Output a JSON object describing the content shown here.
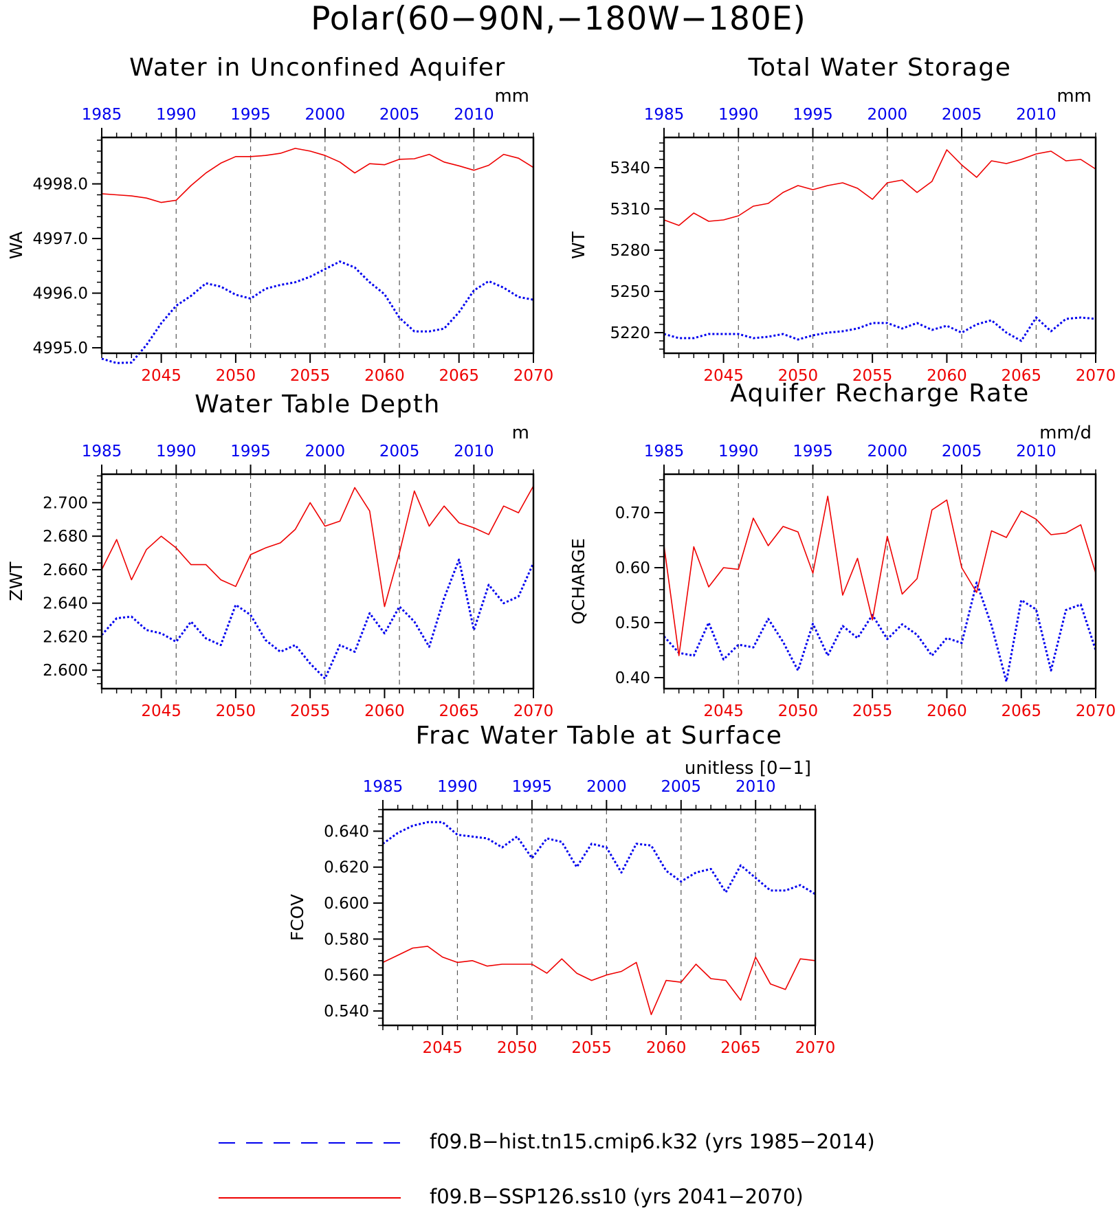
{
  "figure": {
    "title": "Polar(60−90N,−180W−180E)",
    "colors": {
      "hist": "#0000ee",
      "ssp": "#ee0000",
      "axis": "#000000"
    }
  },
  "legend": {
    "items": [
      {
        "key": "hist",
        "label": "f09.B−hist.tn15.cmip6.k32 (yrs 1985−2014)",
        "style": "dotted",
        "color": "#0000ee"
      },
      {
        "key": "ssp",
        "label": "f09.B−SSP126.ss10 (yrs 2041−2070)",
        "style": "solid",
        "color": "#ee0000"
      }
    ]
  },
  "chart_data": [
    {
      "type": "line",
      "title": "Water in Unconfined Aquifer",
      "ylabel": "WA",
      "units": "mm",
      "ylim": [
        4994.9,
        4998.85
      ],
      "yticks": [
        4995.0,
        4996.0,
        4997.0,
        4998.0
      ],
      "ytick_labels": [
        "4995.0",
        "4996.0",
        "4997.0",
        "4998.0"
      ],
      "top_axis": {
        "range": [
          1985,
          2014
        ],
        "ticks": [
          1985,
          1990,
          1995,
          2000,
          2005,
          2010
        ],
        "tick_labels": [
          "1985",
          "1990",
          "1995",
          "2000",
          "2005",
          "2010"
        ]
      },
      "bottom_axis": {
        "range": [
          2041,
          2070
        ],
        "ticks": [
          2045,
          2050,
          2055,
          2060,
          2065,
          2070
        ],
        "tick_labels": [
          "2045",
          "2050",
          "2055",
          "2060",
          "2065",
          "2070"
        ]
      },
      "series": [
        {
          "key": "hist",
          "x_axis": "top",
          "x": [
            1985,
            1986,
            1987,
            1988,
            1989,
            1990,
            1991,
            1992,
            1993,
            1994,
            1995,
            1996,
            1997,
            1998,
            1999,
            2000,
            2001,
            2002,
            2003,
            2004,
            2005,
            2006,
            2007,
            2008,
            2009,
            2010,
            2011,
            2012,
            2013,
            2014
          ],
          "values": [
            4994.8,
            4994.72,
            4994.73,
            4995.05,
            4995.45,
            4995.77,
            4995.95,
            4996.18,
            4996.12,
            4995.97,
            4995.9,
            4996.08,
            4996.15,
            4996.2,
            4996.3,
            4996.44,
            4996.58,
            4996.47,
            4996.2,
            4995.98,
            4995.55,
            4995.3,
            4995.3,
            4995.35,
            4995.65,
            4996.05,
            4996.22,
            4996.1,
            4995.93,
            4995.88
          ]
        },
        {
          "key": "ssp",
          "x_axis": "bottom",
          "x": [
            2041,
            2042,
            2043,
            2044,
            2045,
            2046,
            2047,
            2048,
            2049,
            2050,
            2051,
            2052,
            2053,
            2054,
            2055,
            2056,
            2057,
            2058,
            2059,
            2060,
            2061,
            2062,
            2063,
            2064,
            2065,
            2066,
            2067,
            2068,
            2069,
            2070
          ],
          "values": [
            4997.82,
            4997.8,
            4997.78,
            4997.74,
            4997.66,
            4997.7,
            4997.97,
            4998.2,
            4998.38,
            4998.5,
            4998.5,
            4998.52,
            4998.56,
            4998.65,
            4998.6,
            4998.52,
            4998.4,
            4998.2,
            4998.37,
            4998.35,
            4998.45,
            4998.46,
            4998.54,
            4998.4,
            4998.33,
            4998.25,
            4998.34,
            4998.54,
            4998.47,
            4998.3
          ]
        }
      ]
    },
    {
      "type": "line",
      "title": "Total Water Storage",
      "ylabel": "WT",
      "units": "mm",
      "ylim": [
        5205,
        5362
      ],
      "yticks": [
        5220,
        5250,
        5280,
        5310,
        5340
      ],
      "ytick_labels": [
        "5220",
        "5250",
        "5280",
        "5310",
        "5340"
      ],
      "top_axis": {
        "range": [
          1985,
          2014
        ],
        "ticks": [
          1985,
          1990,
          1995,
          2000,
          2005,
          2010
        ],
        "tick_labels": [
          "1985",
          "1990",
          "1995",
          "2000",
          "2005",
          "2010"
        ]
      },
      "bottom_axis": {
        "range": [
          2041,
          2070
        ],
        "ticks": [
          2045,
          2050,
          2055,
          2060,
          2065,
          2070
        ],
        "tick_labels": [
          "2045",
          "2050",
          "2055",
          "2060",
          "2065",
          "2070"
        ]
      },
      "series": [
        {
          "key": "hist",
          "x_axis": "top",
          "x": [
            1985,
            1986,
            1987,
            1988,
            1989,
            1990,
            1991,
            1992,
            1993,
            1994,
            1995,
            1996,
            1997,
            1998,
            1999,
            2000,
            2001,
            2002,
            2003,
            2004,
            2005,
            2006,
            2007,
            2008,
            2009,
            2010,
            2011,
            2012,
            2013,
            2014
          ],
          "values": [
            5219,
            5216,
            5216,
            5219,
            5219,
            5219,
            5216,
            5217,
            5219,
            5215,
            5218,
            5220,
            5221,
            5223,
            5227,
            5227,
            5223,
            5227,
            5222,
            5225,
            5220,
            5226,
            5229,
            5220,
            5214,
            5231,
            5221,
            5230,
            5231,
            5230
          ]
        },
        {
          "key": "ssp",
          "x_axis": "bottom",
          "x": [
            2041,
            2042,
            2043,
            2044,
            2045,
            2046,
            2047,
            2048,
            2049,
            2050,
            2051,
            2052,
            2053,
            2054,
            2055,
            2056,
            2057,
            2058,
            2059,
            2060,
            2061,
            2062,
            2063,
            2064,
            2065,
            2066,
            2067,
            2068,
            2069,
            2070
          ],
          "values": [
            5302,
            5298,
            5307,
            5301,
            5302,
            5305,
            5312,
            5314,
            5322,
            5327,
            5324,
            5327,
            5329,
            5325,
            5317,
            5329,
            5331,
            5322,
            5330,
            5353,
            5342,
            5333,
            5345,
            5343,
            5346,
            5350,
            5352,
            5345,
            5346,
            5339
          ]
        }
      ]
    },
    {
      "type": "line",
      "title": "Water Table Depth",
      "ylabel": "ZWT",
      "units": "m",
      "ylim": [
        2.589,
        2.717
      ],
      "yticks": [
        2.6,
        2.62,
        2.64,
        2.66,
        2.68,
        2.7
      ],
      "ytick_labels": [
        "2.600",
        "2.620",
        "2.640",
        "2.660",
        "2.680",
        "2.700"
      ],
      "top_axis": {
        "range": [
          1985,
          2014
        ],
        "ticks": [
          1985,
          1990,
          1995,
          2000,
          2005,
          2010
        ],
        "tick_labels": [
          "1985",
          "1990",
          "1995",
          "2000",
          "2005",
          "2010"
        ]
      },
      "bottom_axis": {
        "range": [
          2041,
          2070
        ],
        "ticks": [
          2045,
          2050,
          2055,
          2060,
          2065,
          2070
        ],
        "tick_labels": [
          "2045",
          "2050",
          "2055",
          "2060",
          "2065",
          "2070"
        ]
      },
      "series": [
        {
          "key": "hist",
          "x_axis": "top",
          "x": [
            1985,
            1986,
            1987,
            1988,
            1989,
            1990,
            1991,
            1992,
            1993,
            1994,
            1995,
            1996,
            1997,
            1998,
            1999,
            2000,
            2001,
            2002,
            2003,
            2004,
            2005,
            2006,
            2007,
            2008,
            2009,
            2010,
            2011,
            2012,
            2013,
            2014
          ],
          "values": [
            2.621,
            2.631,
            2.632,
            2.624,
            2.622,
            2.617,
            2.629,
            2.619,
            2.615,
            2.639,
            2.633,
            2.618,
            2.611,
            2.615,
            2.604,
            2.595,
            2.615,
            2.611,
            2.634,
            2.622,
            2.638,
            2.629,
            2.614,
            2.643,
            2.666,
            2.624,
            2.651,
            2.64,
            2.644,
            2.664
          ]
        },
        {
          "key": "ssp",
          "x_axis": "bottom",
          "x": [
            2041,
            2042,
            2043,
            2044,
            2045,
            2046,
            2047,
            2048,
            2049,
            2050,
            2051,
            2052,
            2053,
            2054,
            2055,
            2056,
            2057,
            2058,
            2059,
            2060,
            2061,
            2062,
            2063,
            2064,
            2065,
            2066,
            2067,
            2068,
            2069,
            2070
          ],
          "values": [
            2.66,
            2.678,
            2.654,
            2.672,
            2.68,
            2.673,
            2.663,
            2.663,
            2.654,
            2.65,
            2.669,
            2.673,
            2.676,
            2.684,
            2.7,
            2.686,
            2.689,
            2.709,
            2.695,
            2.638,
            2.67,
            2.707,
            2.686,
            2.698,
            2.688,
            2.685,
            2.681,
            2.698,
            2.694,
            2.71
          ]
        }
      ]
    },
    {
      "type": "line",
      "title": "Aquifer Recharge Rate",
      "ylabel": "QCHARGE",
      "units": "mm/d",
      "ylim": [
        0.38,
        0.77
      ],
      "yticks": [
        0.4,
        0.5,
        0.6,
        0.7
      ],
      "ytick_labels": [
        "0.40",
        "0.50",
        "0.60",
        "0.70"
      ],
      "top_axis": {
        "range": [
          1985,
          2014
        ],
        "ticks": [
          1985,
          1990,
          1995,
          2000,
          2005,
          2010
        ],
        "tick_labels": [
          "1985",
          "1990",
          "1995",
          "2000",
          "2005",
          "2010"
        ]
      },
      "bottom_axis": {
        "range": [
          2041,
          2070
        ],
        "ticks": [
          2045,
          2050,
          2055,
          2060,
          2065,
          2070
        ],
        "tick_labels": [
          "2045",
          "2050",
          "2055",
          "2060",
          "2065",
          "2070"
        ]
      },
      "series": [
        {
          "key": "hist",
          "x_axis": "top",
          "x": [
            1985,
            1986,
            1987,
            1988,
            1989,
            1990,
            1991,
            1992,
            1993,
            1994,
            1995,
            1996,
            1997,
            1998,
            1999,
            2000,
            2001,
            2002,
            2003,
            2004,
            2005,
            2006,
            2007,
            2008,
            2009,
            2010,
            2011,
            2012,
            2013,
            2014
          ],
          "values": [
            0.475,
            0.445,
            0.44,
            0.5,
            0.433,
            0.46,
            0.455,
            0.507,
            0.465,
            0.413,
            0.498,
            0.44,
            0.494,
            0.472,
            0.514,
            0.47,
            0.497,
            0.478,
            0.44,
            0.472,
            0.463,
            0.573,
            0.495,
            0.393,
            0.541,
            0.524,
            0.413,
            0.523,
            0.533,
            0.45
          ]
        },
        {
          "key": "ssp",
          "x_axis": "bottom",
          "x": [
            2041,
            2042,
            2043,
            2044,
            2045,
            2046,
            2047,
            2048,
            2049,
            2050,
            2051,
            2052,
            2053,
            2054,
            2055,
            2056,
            2057,
            2058,
            2059,
            2060,
            2061,
            2062,
            2063,
            2064,
            2065,
            2066,
            2067,
            2068,
            2069,
            2070
          ],
          "values": [
            0.64,
            0.44,
            0.638,
            0.565,
            0.6,
            0.597,
            0.69,
            0.64,
            0.675,
            0.665,
            0.59,
            0.73,
            0.55,
            0.617,
            0.505,
            0.657,
            0.552,
            0.58,
            0.705,
            0.723,
            0.6,
            0.555,
            0.667,
            0.655,
            0.703,
            0.688,
            0.66,
            0.663,
            0.678,
            0.59
          ]
        }
      ]
    },
    {
      "type": "line",
      "title": "Frac Water Table at Surface",
      "ylabel": "FCOV",
      "units": "unitless [0−1]",
      "ylim": [
        0.532,
        0.652
      ],
      "yticks": [
        0.54,
        0.56,
        0.58,
        0.6,
        0.62,
        0.64
      ],
      "ytick_labels": [
        "0.540",
        "0.560",
        "0.580",
        "0.600",
        "0.620",
        "0.640"
      ],
      "top_axis": {
        "range": [
          1985,
          2014
        ],
        "ticks": [
          1985,
          1990,
          1995,
          2000,
          2005,
          2010
        ],
        "tick_labels": [
          "1985",
          "1990",
          "1995",
          "2000",
          "2005",
          "2010"
        ]
      },
      "bottom_axis": {
        "range": [
          2041,
          2070
        ],
        "ticks": [
          2045,
          2050,
          2055,
          2060,
          2065,
          2070
        ],
        "tick_labels": [
          "2045",
          "2050",
          "2055",
          "2060",
          "2065",
          "2070"
        ]
      },
      "series": [
        {
          "key": "hist",
          "x_axis": "top",
          "x": [
            1985,
            1986,
            1987,
            1988,
            1989,
            1990,
            1991,
            1992,
            1993,
            1994,
            1995,
            1996,
            1997,
            1998,
            1999,
            2000,
            2001,
            2002,
            2003,
            2004,
            2005,
            2006,
            2007,
            2008,
            2009,
            2010,
            2011,
            2012,
            2013,
            2014
          ],
          "values": [
            0.633,
            0.639,
            0.643,
            0.645,
            0.645,
            0.638,
            0.637,
            0.636,
            0.631,
            0.637,
            0.625,
            0.636,
            0.634,
            0.62,
            0.633,
            0.631,
            0.617,
            0.633,
            0.632,
            0.618,
            0.612,
            0.617,
            0.619,
            0.606,
            0.621,
            0.614,
            0.607,
            0.607,
            0.61,
            0.605
          ]
        },
        {
          "key": "ssp",
          "x_axis": "bottom",
          "x": [
            2041,
            2042,
            2043,
            2044,
            2045,
            2046,
            2047,
            2048,
            2049,
            2050,
            2051,
            2052,
            2053,
            2054,
            2055,
            2056,
            2057,
            2058,
            2059,
            2060,
            2061,
            2062,
            2063,
            2064,
            2065,
            2066,
            2067,
            2068,
            2069,
            2070
          ],
          "values": [
            0.567,
            0.571,
            0.575,
            0.576,
            0.57,
            0.567,
            0.568,
            0.565,
            0.566,
            0.566,
            0.566,
            0.561,
            0.569,
            0.561,
            0.557,
            0.56,
            0.562,
            0.567,
            0.538,
            0.557,
            0.556,
            0.566,
            0.558,
            0.557,
            0.546,
            0.57,
            0.555,
            0.552,
            0.569,
            0.568
          ]
        }
      ]
    }
  ]
}
